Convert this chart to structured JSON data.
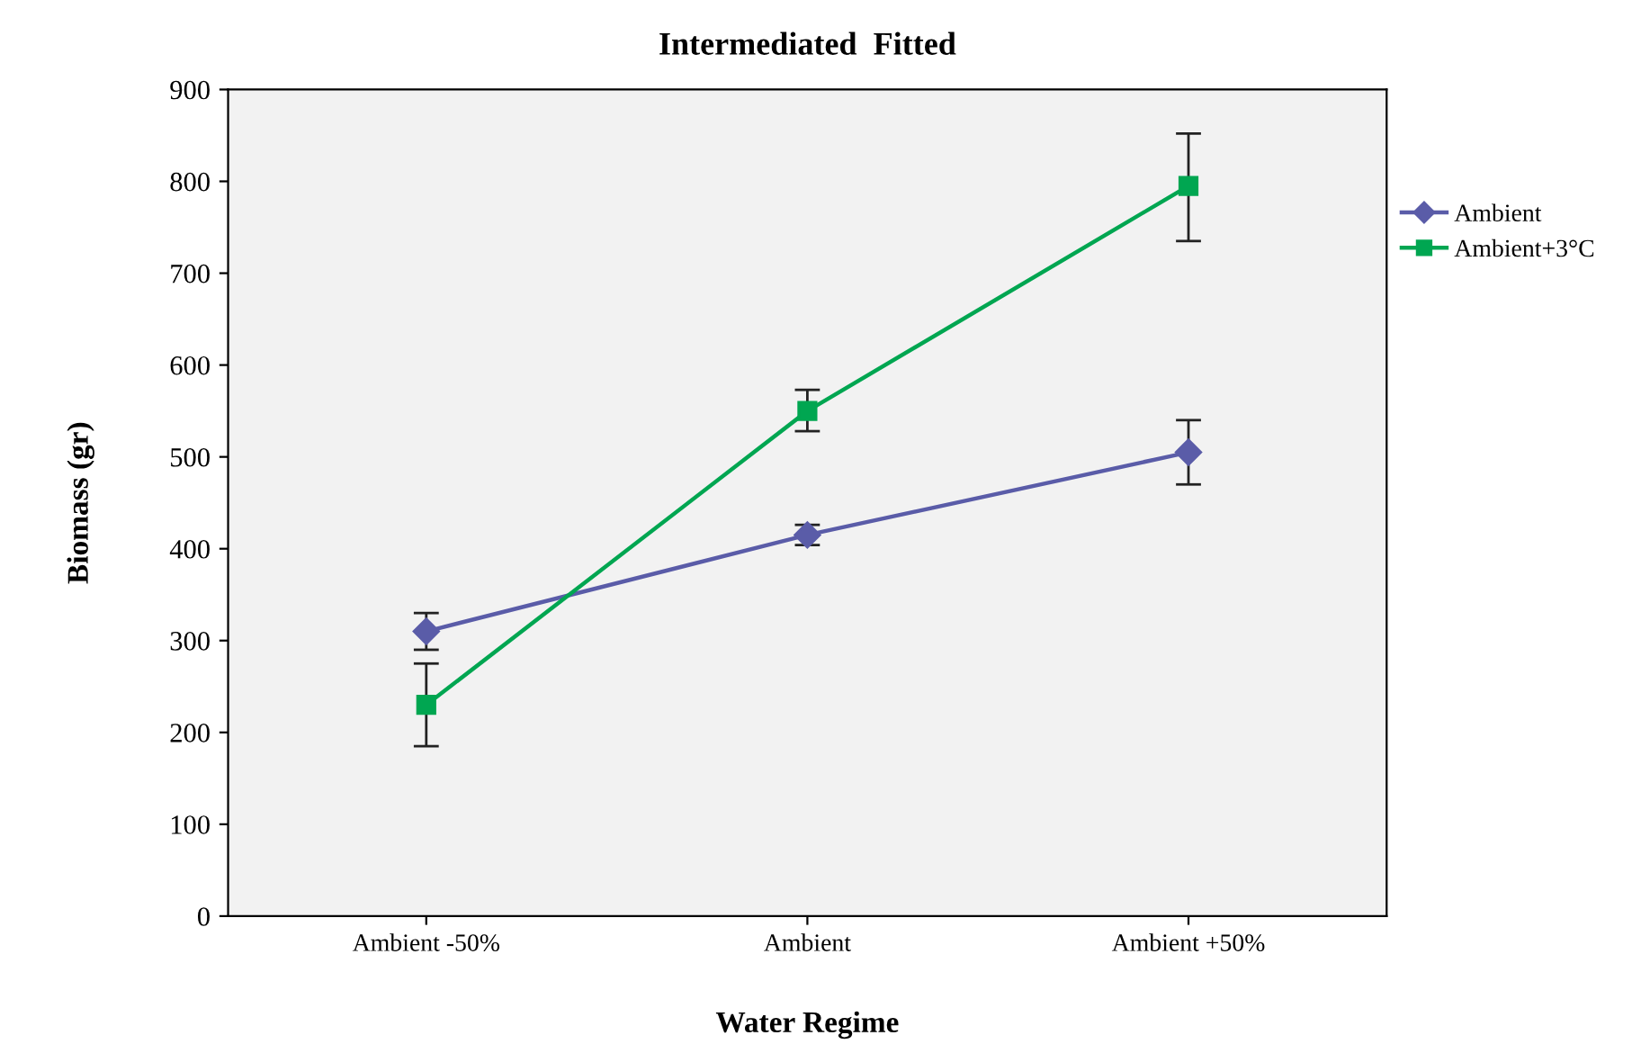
{
  "chart_data": {
    "type": "line",
    "title": "Intermediated  Fitted",
    "xlabel": "Water Regime",
    "ylabel": "Biomass (gr)",
    "categories": [
      "Ambient -50%",
      "Ambient",
      "Ambient +50%"
    ],
    "series": [
      {
        "name": "Ambient",
        "color": "#5a5ca8",
        "marker": "diamond",
        "values": [
          310,
          415,
          505
        ],
        "errors": [
          20,
          11,
          35
        ]
      },
      {
        "name": "Ambient+3°C",
        "color": "#00a651",
        "marker": "square",
        "values": [
          230,
          550,
          795
        ],
        "errors": [
          [
            185,
            275
          ],
          [
            528,
            573
          ],
          [
            735,
            852
          ]
        ]
      }
    ],
    "ylim": [
      0,
      900
    ],
    "yticks": [
      0,
      100,
      200,
      300,
      400,
      500,
      600,
      700,
      800,
      900
    ],
    "grid": false,
    "legend": "right",
    "line_style": "solid"
  }
}
